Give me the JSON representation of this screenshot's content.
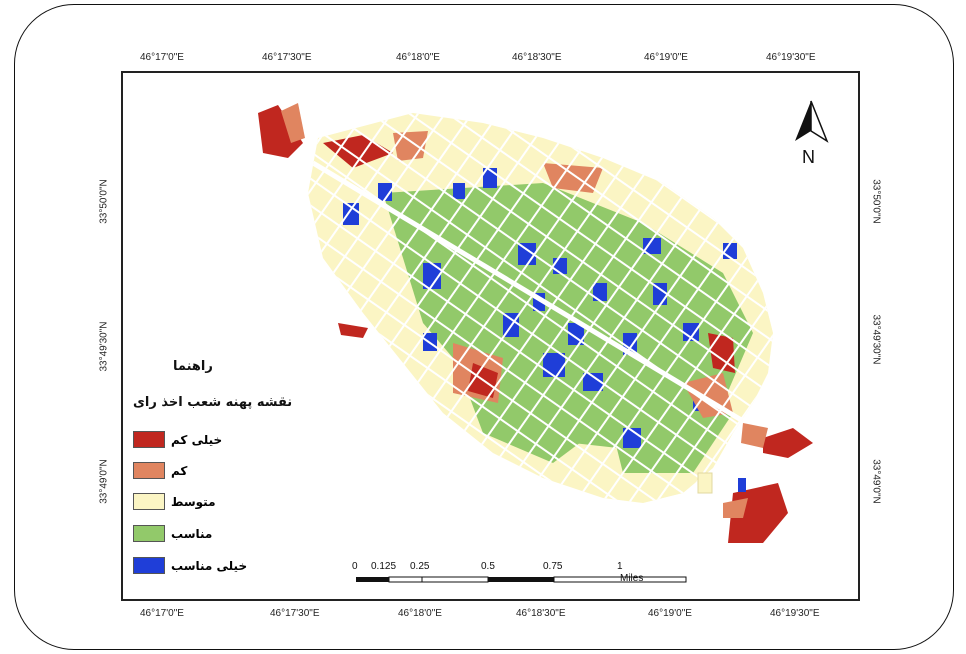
{
  "map": {
    "top_ticks": [
      "46°17'0\"E",
      "46°17'30\"E",
      "46°18'0\"E",
      "46°18'30\"E",
      "46°19'0\"E",
      "46°19'30\"E"
    ],
    "bottom_ticks": [
      "46°17'0\"E",
      "46°17'30\"E",
      "46°18'0\"E",
      "46°18'30\"E",
      "46°19'0\"E",
      "46°19'30\"E"
    ],
    "left_ticks": [
      "33°50'0\"N",
      "33°49'30\"N",
      "33°49'0\"N"
    ],
    "right_ticks": [
      "33°50'0\"N",
      "33°49'30\"N",
      "33°49'0\"N"
    ]
  },
  "legend": {
    "heading": "راهنما",
    "subtitle": "نقشه پهنه شعب اخذ رای",
    "items": [
      {
        "label": "خیلی کم",
        "color": "#c0271f"
      },
      {
        "label": "کم",
        "color": "#e08560"
      },
      {
        "label": "متوسط",
        "color": "#fbf5c4"
      },
      {
        "label": "مناسب",
        "color": "#92c96a"
      },
      {
        "label": "خیلی مناسب",
        "color": "#1f3ed8"
      }
    ]
  },
  "scalebar": {
    "labels": [
      "0",
      "0.125",
      "0.25",
      "0.5",
      "0.75",
      "1"
    ],
    "unit": "Miles"
  },
  "north_arrow": {
    "label": "N",
    "icon": "north-arrow-icon"
  }
}
